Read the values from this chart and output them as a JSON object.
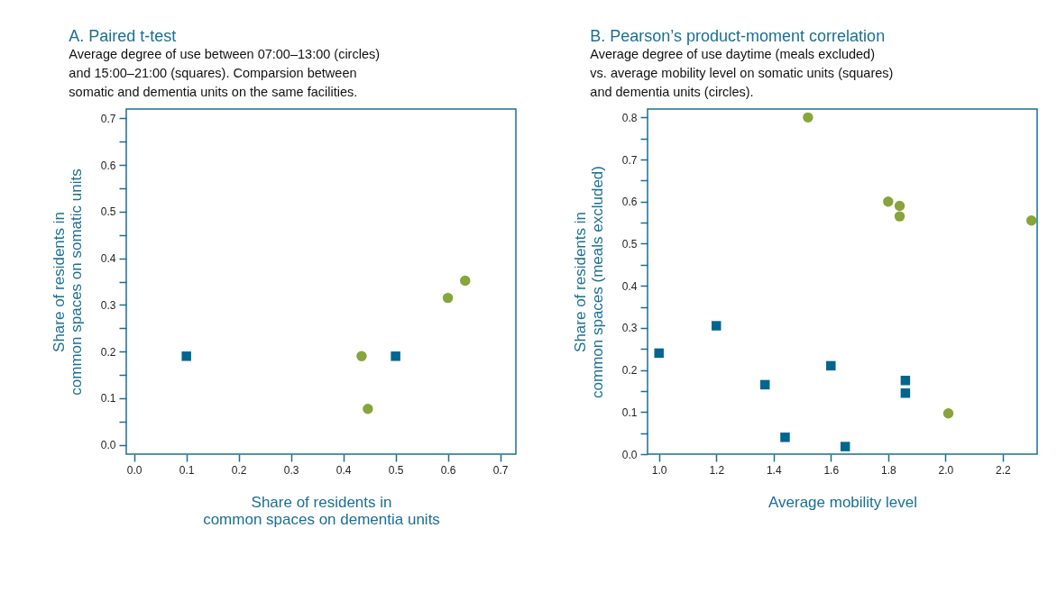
{
  "chart_data": [
    {
      "type": "scatter",
      "title": "A. Paired t-test",
      "subtitle": "Average degree of use between 07:00–13:00 (circles)\nand 15:00–21:00 (squares). Comparsion between\nsomatic and dementia units on the same facilities.",
      "xlabel": "Share of residents in\ncommon spaces on dementia units",
      "ylabel": "Share of residents in\ncommon spaces on somatic units",
      "grid": false,
      "xlim": [
        -0.015,
        0.73
      ],
      "xticks": [
        {
          "value": 0,
          "label": "0.0"
        },
        0.1,
        0.2,
        0.3,
        0.4,
        0.5,
        0.6,
        0.7
      ],
      "ylim": [
        -0.02,
        0.72
      ],
      "yticks": [
        {
          "value": 0,
          "label": "0.0"
        },
        {
          "value": 0.05,
          "label": null
        },
        0.1,
        {
          "value": 0.15,
          "label": null
        },
        0.2,
        {
          "value": 0.25,
          "label": null
        },
        0.3,
        {
          "value": 0.35,
          "label": null
        },
        0.4,
        {
          "value": 0.45,
          "label": null
        },
        0.5,
        {
          "value": 0.55,
          "label": null
        },
        0.6,
        {
          "value": 0.65,
          "label": null
        },
        0.7
      ],
      "series": [
        {
          "color": "#00668f",
          "marker": "square",
          "x": [
            0.1,
            0.5
          ],
          "values": [
            0.19,
            0.19
          ]
        },
        {
          "color": "#86a53b",
          "marker": "circle",
          "x": [
            0.435,
            0.447,
            0.6,
            0.633
          ],
          "values": [
            0.19,
            0.077,
            0.315,
            0.352
          ]
        }
      ]
    },
    {
      "type": "scatter",
      "title": "B. Pearson’s product-moment correlation",
      "subtitle": "Average degree of use daytime (meals excluded)\nvs. average mobility level on somatic units (squares)\nand dementia units (circles).",
      "xlabel": "Average mobility level",
      "ylabel": "Share of residents in\ncommon spaces (meals excluded)",
      "grid": false,
      "xlim": [
        0.96,
        2.32
      ],
      "xticks": [
        {
          "value": 1,
          "label": "1.0"
        },
        1.2,
        1.4,
        1.6,
        1.8,
        {
          "value": 2,
          "label": "2.0"
        },
        2.2
      ],
      "ylim": [
        0,
        0.82
      ],
      "yticks": [
        {
          "value": 0,
          "label": "0.0"
        },
        {
          "value": 0.05,
          "label": null
        },
        0.1,
        {
          "value": 0.15,
          "label": null
        },
        0.2,
        {
          "value": 0.25,
          "label": null
        },
        0.3,
        {
          "value": 0.35,
          "label": null
        },
        0.4,
        {
          "value": 0.45,
          "label": null
        },
        0.5,
        {
          "value": 0.55,
          "label": null
        },
        0.6,
        {
          "value": 0.65,
          "label": null
        },
        0.7,
        {
          "value": 0.75,
          "label": null
        },
        0.8
      ],
      "series": [
        {
          "color": "#00668f",
          "marker": "square",
          "x": [
            1.0,
            1.2,
            1.37,
            1.44,
            1.6,
            1.65,
            1.86,
            1.86
          ],
          "values": [
            0.24,
            0.305,
            0.165,
            0.04,
            0.21,
            0.018,
            0.175,
            0.145
          ]
        },
        {
          "color": "#86a53b",
          "marker": "circle",
          "x": [
            1.52,
            1.8,
            1.84,
            1.84,
            2.01,
            2.3
          ],
          "values": [
            0.8,
            0.6,
            0.59,
            0.565,
            0.097,
            0.555
          ]
        }
      ]
    }
  ]
}
